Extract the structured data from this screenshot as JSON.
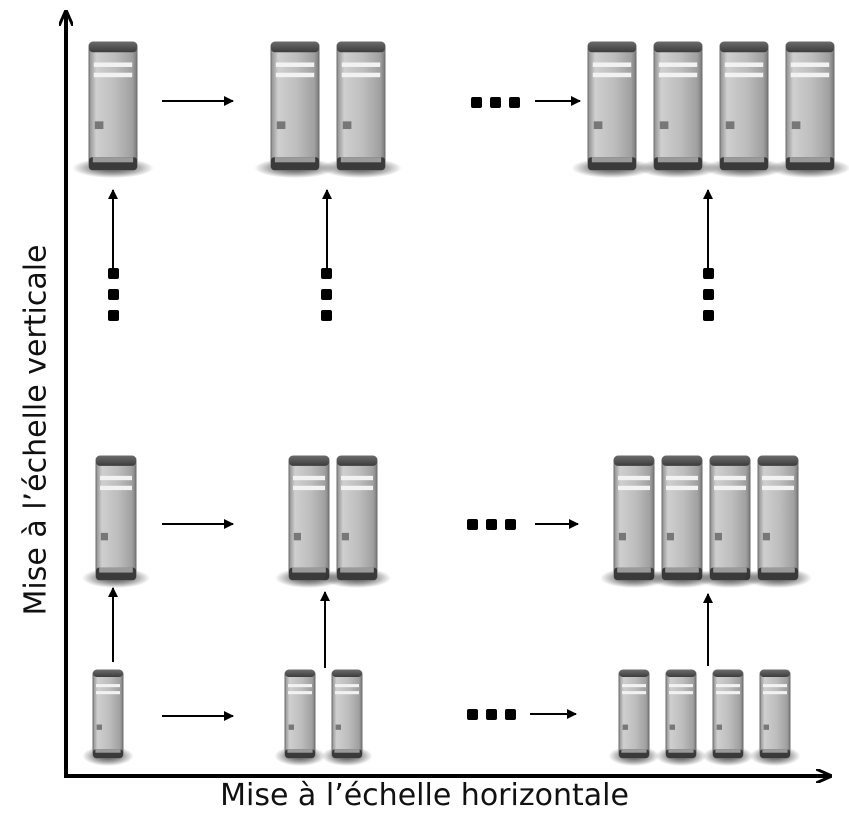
{
  "x_axis_label": "Mise à l’échelle horizontale",
  "y_axis_label": "Mise à l’échelle verticale",
  "colors": {
    "axis": "#000000",
    "server_body": "#b9b9b9",
    "server_top": "#5a5a5a",
    "shadow": "#000000"
  },
  "icon": "tower-server-icon",
  "rows": [
    {
      "id": "top",
      "groups": [
        1,
        2,
        4
      ]
    },
    {
      "id": "middle",
      "groups": [
        1,
        2,
        4
      ]
    },
    {
      "id": "bottom",
      "groups": [
        1,
        2,
        4
      ]
    }
  ]
}
